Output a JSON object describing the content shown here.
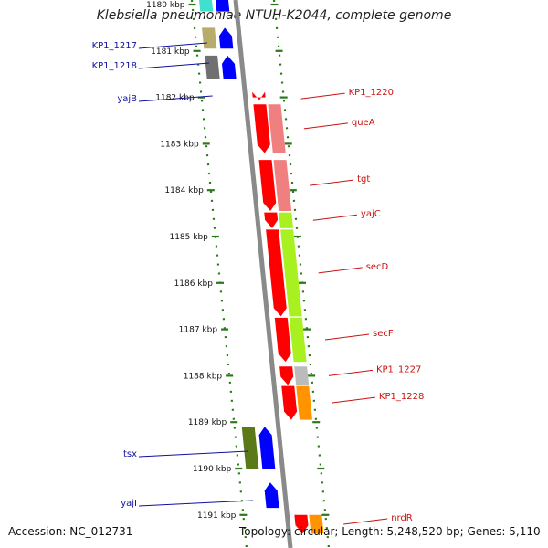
{
  "title": "Klebsiella pneumoniae NTUH-K2044, complete genome",
  "accession": "Accession: NC_012731",
  "topology": "Topology: circular; Length: 5,248,520 bp; Genes: 5,110",
  "colors": {
    "backbone": "#8a8a8a",
    "tick": "#2a7a1a",
    "reverse_label": "#1010a0",
    "forward_label": "#cc1010",
    "gene_red": "#ff0000",
    "cog_pink": "#f08080",
    "cog_lime": "#a8f020",
    "cog_gray": "#bbbbbb",
    "cog_orange": "#ff9400",
    "cog_olive": "#5a7a18",
    "cog_khaki": "#b8ad68",
    "cog_darkgray": "#707070",
    "gene_blue": "#0000ff",
    "cog_cyan": "#40e0d0"
  },
  "kbp_ticks": [
    {
      "kbp": 1180,
      "label": "1180 kbp"
    },
    {
      "kbp": 1181,
      "label": "1181 kbp"
    },
    {
      "kbp": 1182,
      "label": "1182 kbp"
    },
    {
      "kbp": 1183,
      "label": "1183 kbp"
    },
    {
      "kbp": 1184,
      "label": "1184 kbp"
    },
    {
      "kbp": 1185,
      "label": "1185 kbp"
    },
    {
      "kbp": 1186,
      "label": "1186 kbp"
    },
    {
      "kbp": 1187,
      "label": "1187 kbp"
    },
    {
      "kbp": 1188,
      "label": "1188 kbp"
    },
    {
      "kbp": 1189,
      "label": "1189 kbp"
    },
    {
      "kbp": 1190,
      "label": "1190 kbp"
    },
    {
      "kbp": 1191,
      "label": "1191 kbp"
    }
  ],
  "forward_genes": [
    {
      "name": "KP1_1220",
      "start": 1182.0,
      "end": 1182.06,
      "cog": "gene_red"
    },
    {
      "name": "queA",
      "start": 1182.15,
      "end": 1183.2,
      "cog": "cog_pink"
    },
    {
      "name": "tgt",
      "start": 1183.35,
      "end": 1184.45,
      "cog": "cog_pink"
    },
    {
      "name": "yajC",
      "start": 1184.48,
      "end": 1184.82,
      "cog": "cog_lime"
    },
    {
      "name": "secD",
      "start": 1184.85,
      "end": 1186.72,
      "cog": "cog_lime"
    },
    {
      "name": "secF",
      "start": 1186.75,
      "end": 1187.7,
      "cog": "cog_lime"
    },
    {
      "name": "KP1_1227",
      "start": 1187.8,
      "end": 1188.2,
      "cog": "cog_gray"
    },
    {
      "name": "KP1_1228",
      "start": 1188.22,
      "end": 1188.95,
      "cog": "cog_orange"
    },
    {
      "name": "nrdR",
      "start": 1191.0,
      "end": 1191.4,
      "cog": "cog_orange"
    }
  ],
  "reverse_genes": [
    {
      "name": "",
      "start": 1179.7,
      "end": 1180.15,
      "cog": "cog_cyan"
    },
    {
      "name": "KP1_1217",
      "start": 1180.5,
      "end": 1180.95,
      "cog": "cog_khaki"
    },
    {
      "name": "KP1_1218",
      "start": 1181.1,
      "end": 1181.6,
      "cog": "cog_darkgray"
    },
    {
      "name": "yajB",
      "start": 1181.1,
      "end": 1181.6,
      "cog": "cog_darkgray"
    },
    {
      "name": "tsx",
      "start": 1189.1,
      "end": 1190.0,
      "cog": "cog_olive"
    },
    {
      "name": "yajI",
      "start": 1190.3,
      "end": 1190.85,
      "cog": "gene_blue"
    }
  ]
}
